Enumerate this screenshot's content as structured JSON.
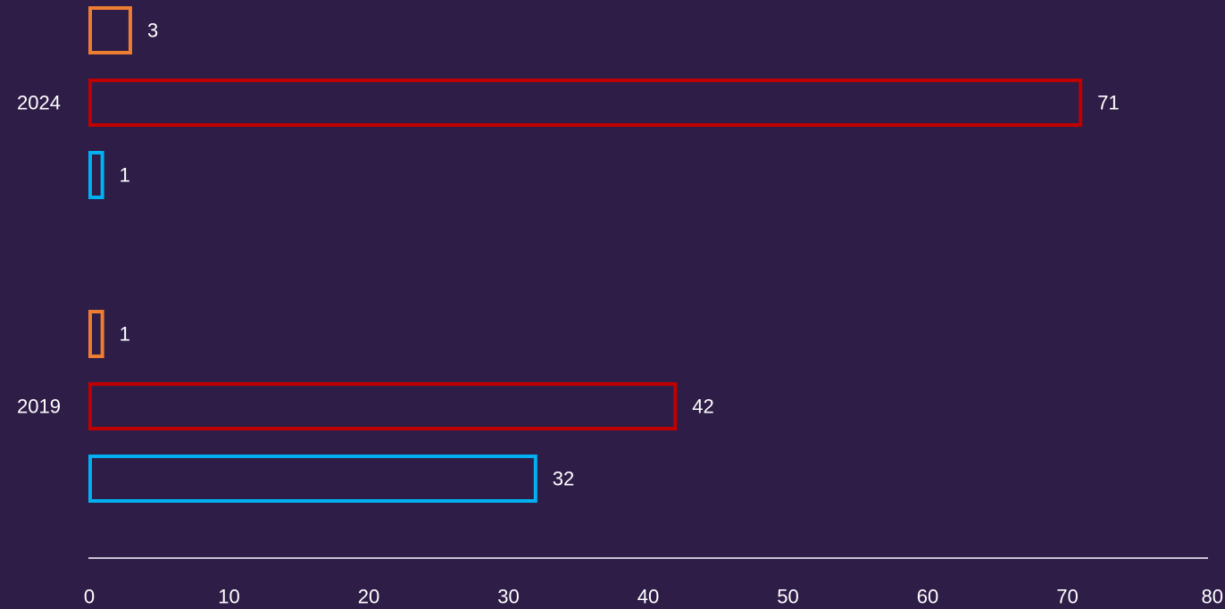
{
  "chart_data": {
    "type": "bar",
    "orientation": "horizontal",
    "categories": [
      "2024",
      "2019"
    ],
    "series": [
      {
        "color": "#ed7d31",
        "values": [
          3,
          1
        ]
      },
      {
        "color": "#c00000",
        "values": [
          71,
          42
        ]
      },
      {
        "color": "#00b0f0",
        "values": [
          1,
          32
        ]
      }
    ],
    "xlim": [
      0,
      80
    ],
    "x_ticks": [
      0,
      10,
      20,
      30,
      40,
      50,
      60,
      70,
      80
    ],
    "tick_labels": [
      "0",
      "10",
      "20",
      "30",
      "40",
      "50",
      "60",
      "70",
      "80"
    ],
    "data_labels": [
      [
        "3",
        "1"
      ],
      [
        "71",
        "42"
      ],
      [
        "1",
        "32"
      ]
    ],
    "title": "",
    "xlabel": "",
    "ylabel": "",
    "grid": false,
    "legend": "none",
    "background": "#2e1d47",
    "axis_color": "#c9c3d4"
  }
}
